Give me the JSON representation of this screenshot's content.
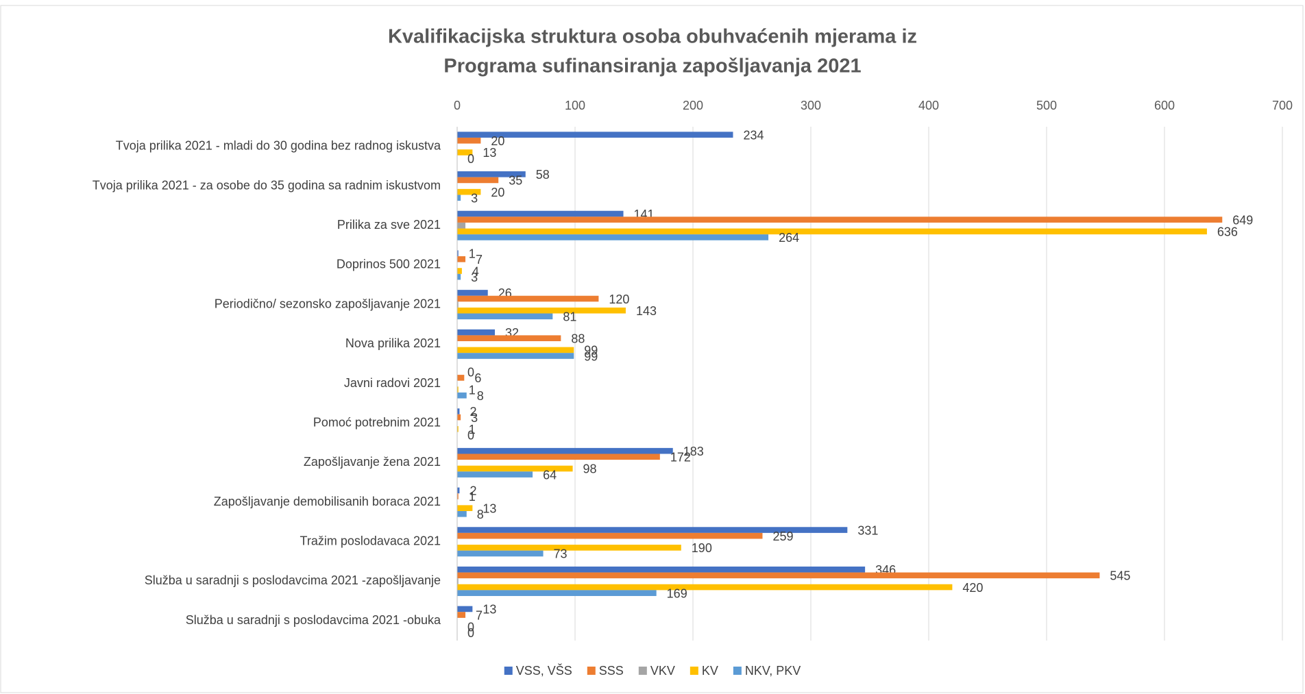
{
  "chart_data": {
    "type": "hbar",
    "title": [
      "Kvalifikacijska struktura osoba obuhvaćenih mjerama iz",
      "Programa sufinansiranja zapošljavanja 2021"
    ],
    "categories": [
      "Tvoja prilika 2021 -  mladi do 30 godina bez radnog iskustva",
      "Tvoja prilika 2021 - za osobe do 35 godina sa radnim iskustvom",
      "Prilika za sve 2021",
      "Doprinos 500 2021",
      "Periodično/ sezonsko zapošljavanje 2021",
      "Nova prilika 2021",
      "Javni radovi 2021",
      "Pomoć potrebnim 2021",
      "Zapošljavanje žena 2021",
      "Zapošljavanje demobilisanih boraca 2021",
      "Tražim poslodavaca 2021",
      "Služba u saradnji s poslodavcima 2021 -zapošljavanje",
      "Služba u saradnji s poslodavcima 2021 -obuka"
    ],
    "series": [
      {
        "name": "VSS, VŠS",
        "color": "#4472c4",
        "data_labels": true,
        "values": [
          234,
          58,
          141,
          1,
          26,
          32,
          0,
          2,
          183,
          2,
          331,
          346,
          13
        ]
      },
      {
        "name": "SSS",
        "color": "#ed7d31",
        "data_labels": true,
        "values": [
          20,
          35,
          649,
          7,
          120,
          88,
          6,
          3,
          172,
          1,
          259,
          545,
          7
        ]
      },
      {
        "name": "VKV",
        "color": "#a5a5a5",
        "data_labels": false,
        "values": [
          0,
          0,
          7,
          0,
          1,
          0,
          0,
          0,
          0,
          0,
          0,
          1,
          0
        ]
      },
      {
        "name": "KV",
        "color": "#ffc000",
        "data_labels": true,
        "values": [
          13,
          20,
          636,
          4,
          143,
          99,
          1,
          1,
          98,
          13,
          190,
          420,
          0
        ]
      },
      {
        "name": "NKV, PKV",
        "color": "#5b9bd5",
        "data_labels": true,
        "values": [
          0,
          3,
          264,
          3,
          81,
          99,
          8,
          0,
          64,
          8,
          73,
          169,
          0
        ]
      }
    ],
    "xlim": [
      0,
      700
    ],
    "xticks": [
      0,
      100,
      200,
      300,
      400,
      500,
      600,
      700
    ],
    "grid": true,
    "legend": "bottom"
  }
}
